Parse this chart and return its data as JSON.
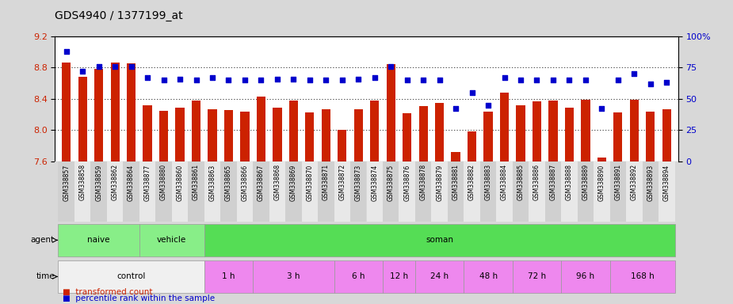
{
  "title": "GDS4940 / 1377199_at",
  "samples": [
    "GSM338857",
    "GSM338858",
    "GSM338859",
    "GSM338862",
    "GSM338864",
    "GSM338877",
    "GSM338880",
    "GSM338860",
    "GSM338861",
    "GSM338863",
    "GSM338865",
    "GSM338866",
    "GSM338867",
    "GSM338868",
    "GSM338869",
    "GSM338870",
    "GSM338871",
    "GSM338872",
    "GSM338873",
    "GSM338874",
    "GSM338875",
    "GSM338876",
    "GSM338878",
    "GSM338879",
    "GSM338881",
    "GSM338882",
    "GSM338883",
    "GSM338884",
    "GSM338885",
    "GSM338886",
    "GSM338887",
    "GSM338888",
    "GSM338889",
    "GSM338890",
    "GSM338891",
    "GSM338892",
    "GSM338893",
    "GSM338894"
  ],
  "bar_values": [
    8.87,
    8.68,
    8.78,
    8.87,
    8.86,
    8.32,
    8.25,
    8.29,
    8.38,
    8.27,
    8.26,
    8.24,
    8.43,
    8.29,
    8.38,
    8.23,
    8.27,
    8.0,
    8.27,
    8.38,
    8.85,
    8.22,
    8.31,
    8.35,
    7.72,
    7.98,
    8.24,
    8.48,
    8.32,
    8.37,
    8.38,
    8.29,
    8.39,
    7.65,
    8.23,
    8.39,
    8.24,
    8.27
  ],
  "percentile_values": [
    88,
    72,
    76,
    76,
    76,
    67,
    65,
    66,
    65,
    67,
    65,
    65,
    65,
    66,
    66,
    65,
    65,
    65,
    66,
    67,
    76,
    65,
    65,
    65,
    42,
    55,
    45,
    67,
    65,
    65,
    65,
    65,
    65,
    42,
    65,
    70,
    62,
    63
  ],
  "ylim_left": [
    7.6,
    9.2
  ],
  "ylim_right": [
    0,
    100
  ],
  "bar_color": "#cc2200",
  "dot_color": "#0000cc",
  "fig_bg_color": "#d8d8d8",
  "plot_bg_color": "#ffffff",
  "xtick_bg_even": "#d0d0d0",
  "xtick_bg_odd": "#e8e8e8",
  "left_yticks": [
    7.6,
    8.0,
    8.4,
    8.8,
    9.2
  ],
  "right_yticks": [
    0,
    25,
    50,
    75,
    100
  ],
  "hgrid_values": [
    8.0,
    8.4,
    8.8
  ],
  "agent_boxes": [
    {
      "label": "naive",
      "start": 0,
      "end": 4,
      "color": "#88ee88"
    },
    {
      "label": "vehicle",
      "start": 5,
      "end": 8,
      "color": "#88ee88"
    },
    {
      "label": "soman",
      "start": 9,
      "end": 37,
      "color": "#55dd55"
    }
  ],
  "time_boxes": [
    {
      "label": "control",
      "start": 0,
      "end": 8,
      "color": "#f0f0f0"
    },
    {
      "label": "1 h",
      "start": 9,
      "end": 11,
      "color": "#ee88ee"
    },
    {
      "label": "3 h",
      "start": 12,
      "end": 16,
      "color": "#ee88ee"
    },
    {
      "label": "6 h",
      "start": 17,
      "end": 19,
      "color": "#ee88ee"
    },
    {
      "label": "12 h",
      "start": 20,
      "end": 21,
      "color": "#ee88ee"
    },
    {
      "label": "24 h",
      "start": 22,
      "end": 24,
      "color": "#ee88ee"
    },
    {
      "label": "48 h",
      "start": 25,
      "end": 27,
      "color": "#ee88ee"
    },
    {
      "label": "72 h",
      "start": 28,
      "end": 30,
      "color": "#ee88ee"
    },
    {
      "label": "96 h",
      "start": 31,
      "end": 33,
      "color": "#ee88ee"
    },
    {
      "label": "168 h",
      "start": 34,
      "end": 37,
      "color": "#ee88ee"
    }
  ],
  "title_fontsize": 10,
  "axis_fontsize": 8,
  "tick_fontsize": 5.5,
  "label_fontsize": 8,
  "legend_fontsize": 7.5
}
